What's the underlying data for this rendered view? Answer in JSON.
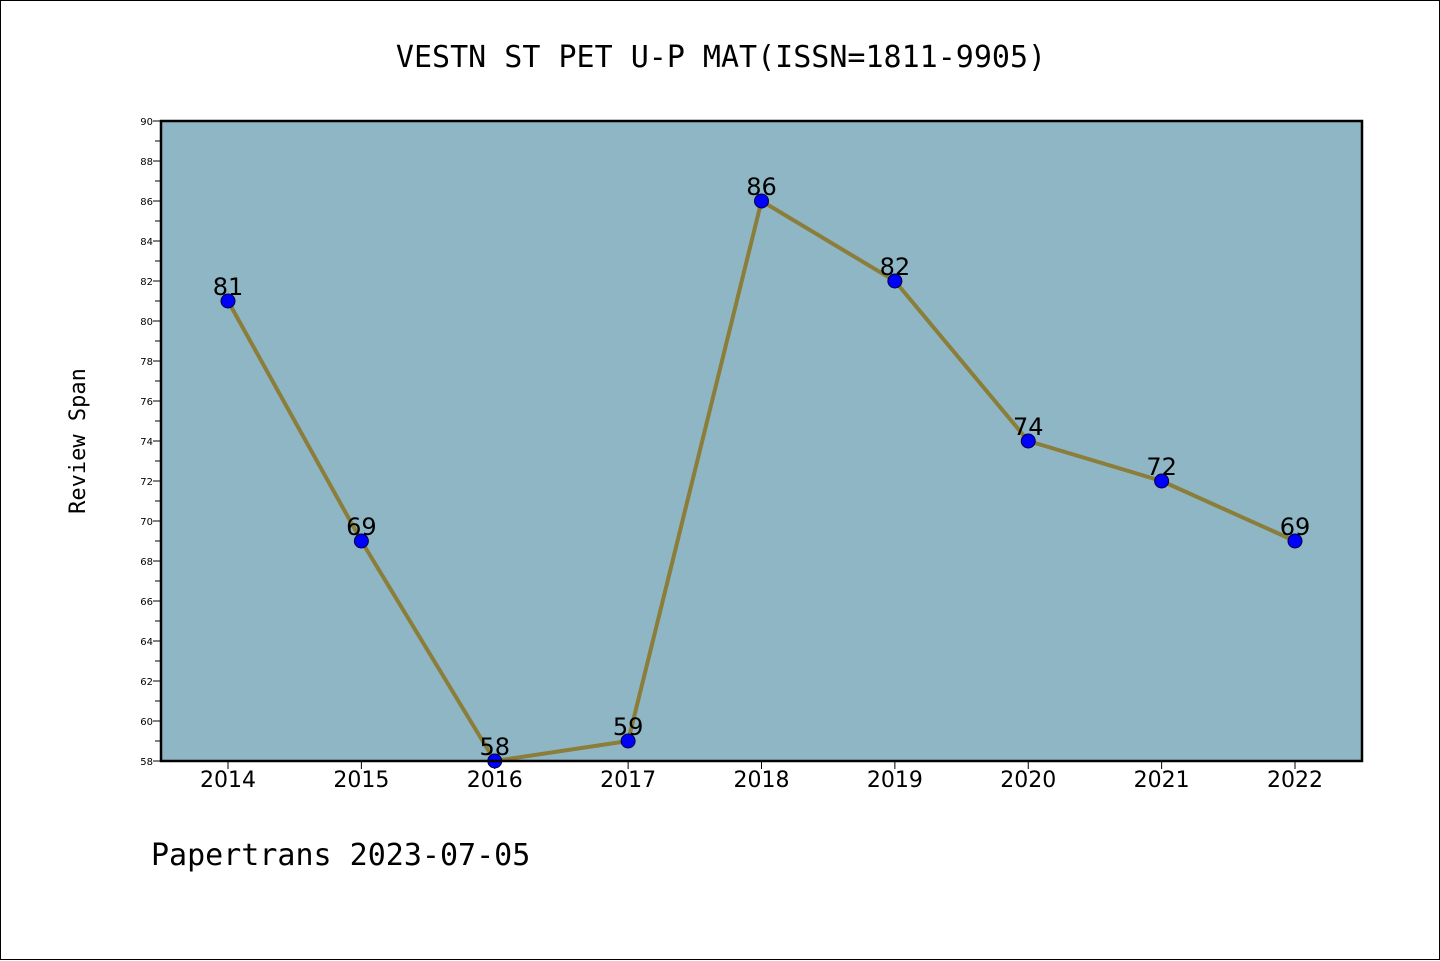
{
  "chart_data": {
    "type": "line",
    "title": "VESTN ST PET U-P MAT(ISSN=1811-9905)",
    "xlabel": "",
    "ylabel": "Review Span",
    "x": [
      "2014",
      "2015",
      "2016",
      "2017",
      "2018",
      "2019",
      "2020",
      "2021",
      "2022"
    ],
    "series": [
      {
        "values": [
          81,
          69,
          58,
          59,
          86,
          82,
          74,
          72,
          69
        ]
      }
    ],
    "ylim": [
      58,
      90
    ],
    "yticks": [
      58,
      60,
      62,
      64,
      66,
      68,
      70,
      72,
      74,
      76,
      78,
      80,
      82,
      84,
      86,
      88,
      90
    ],
    "data_labels": true,
    "grid": false,
    "colors": {
      "plot_background": "#8fb6c4",
      "line": "#8b7d3a",
      "marker": "#0000ff"
    }
  },
  "footer": "Papertrans 2023-07-05"
}
